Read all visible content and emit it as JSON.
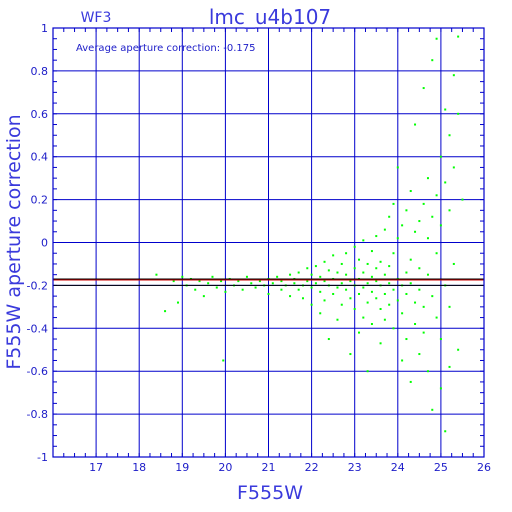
{
  "chart_data": {
    "type": "scatter",
    "title": "lmc_u4b107",
    "subtitle": "WF3",
    "annotation": "Average aperture correction: -0.175",
    "xlabel": "F555W",
    "ylabel": "F555W aperture correction",
    "xlim": [
      16,
      26
    ],
    "ylim": [
      -1,
      1
    ],
    "x_ticks": [
      "17",
      "18",
      "19",
      "20",
      "21",
      "22",
      "23",
      "24",
      "25",
      "26"
    ],
    "y_ticks": [
      "-1",
      "-0.8",
      "-0.6",
      "-0.4",
      "-0.2",
      "0",
      "0.2",
      "0.4",
      "0.6",
      "0.8",
      "1"
    ],
    "grid": true,
    "reference_lines": [
      {
        "label": "average",
        "y": -0.175,
        "color": "#cc0000"
      },
      {
        "label": "band-top",
        "y": -0.17,
        "color": "#000000"
      },
      {
        "label": "band-bottom",
        "y": -0.2,
        "color": "#000000"
      }
    ],
    "colors": {
      "points": "#00ff00",
      "frame": "#0000cc",
      "grid": "#0000cc",
      "text": "#3a3adc"
    },
    "series": [
      {
        "values": [
          [
            18.4,
            -0.15
          ],
          [
            18.6,
            -0.32
          ],
          [
            18.8,
            -0.18
          ],
          [
            18.9,
            -0.28
          ],
          [
            19.0,
            -0.16
          ],
          [
            19.1,
            -0.2
          ],
          [
            19.2,
            -0.17
          ],
          [
            19.3,
            -0.22
          ],
          [
            19.4,
            -0.18
          ],
          [
            19.5,
            -0.25
          ],
          [
            19.6,
            -0.19
          ],
          [
            19.7,
            -0.16
          ],
          [
            19.8,
            -0.21
          ],
          [
            19.9,
            -0.18
          ],
          [
            19.95,
            -0.55
          ],
          [
            20.0,
            -0.23
          ],
          [
            20.1,
            -0.17
          ],
          [
            20.2,
            -0.2
          ],
          [
            20.3,
            -0.18
          ],
          [
            20.4,
            -0.22
          ],
          [
            20.5,
            -0.16
          ],
          [
            20.6,
            -0.19
          ],
          [
            20.7,
            -0.21
          ],
          [
            20.8,
            -0.18
          ],
          [
            20.9,
            -0.2
          ],
          [
            21.0,
            -0.17
          ],
          [
            21.0,
            -0.24
          ],
          [
            21.1,
            -0.19
          ],
          [
            21.2,
            -0.16
          ],
          [
            21.3,
            -0.22
          ],
          [
            21.3,
            -0.18
          ],
          [
            21.4,
            -0.2
          ],
          [
            21.5,
            -0.15
          ],
          [
            21.5,
            -0.25
          ],
          [
            21.6,
            -0.19
          ],
          [
            21.6,
            -0.17
          ],
          [
            21.7,
            -0.22
          ],
          [
            21.7,
            -0.14
          ],
          [
            21.8,
            -0.2
          ],
          [
            21.8,
            -0.26
          ],
          [
            21.9,
            -0.18
          ],
          [
            21.9,
            -0.12
          ],
          [
            22.0,
            -0.21
          ],
          [
            22.0,
            -0.15
          ],
          [
            22.0,
            -0.29
          ],
          [
            22.1,
            -0.19
          ],
          [
            22.1,
            -0.11
          ],
          [
            22.2,
            -0.23
          ],
          [
            22.2,
            -0.16
          ],
          [
            22.2,
            -0.33
          ],
          [
            22.3,
            -0.18
          ],
          [
            22.3,
            -0.09
          ],
          [
            22.3,
            -0.27
          ],
          [
            22.4,
            -0.2
          ],
          [
            22.4,
            -0.13
          ],
          [
            22.4,
            -0.45
          ],
          [
            22.5,
            -0.17
          ],
          [
            22.5,
            -0.24
          ],
          [
            22.5,
            -0.06
          ],
          [
            22.6,
            -0.21
          ],
          [
            22.6,
            -0.14
          ],
          [
            22.6,
            -0.36
          ],
          [
            22.7,
            -0.19
          ],
          [
            22.7,
            -0.1
          ],
          [
            22.7,
            -0.29
          ],
          [
            22.8,
            -0.22
          ],
          [
            22.8,
            -0.15
          ],
          [
            22.8,
            -0.05
          ],
          [
            22.9,
            -0.18
          ],
          [
            22.9,
            -0.26
          ],
          [
            22.9,
            -0.52
          ],
          [
            23.0,
            -0.2
          ],
          [
            23.0,
            -0.12
          ],
          [
            23.0,
            -0.31
          ],
          [
            23.0,
            -0.02
          ],
          [
            23.1,
            -0.17
          ],
          [
            23.1,
            -0.24
          ],
          [
            23.1,
            -0.08
          ],
          [
            23.1,
            -0.42
          ],
          [
            23.2,
            -0.21
          ],
          [
            23.2,
            -0.14
          ],
          [
            23.2,
            -0.35
          ],
          [
            23.2,
            0.01
          ],
          [
            23.3,
            -0.19
          ],
          [
            23.3,
            -0.1
          ],
          [
            23.3,
            -0.28
          ],
          [
            23.3,
            -0.6
          ],
          [
            23.4,
            -0.23
          ],
          [
            23.4,
            -0.16
          ],
          [
            23.4,
            -0.04
          ],
          [
            23.4,
            -0.38
          ],
          [
            23.5,
            -0.18
          ],
          [
            23.5,
            -0.26
          ],
          [
            23.5,
            -0.12
          ],
          [
            23.5,
            0.03
          ],
          [
            23.6,
            -0.2
          ],
          [
            23.6,
            -0.31
          ],
          [
            23.6,
            -0.09
          ],
          [
            23.6,
            -0.47
          ],
          [
            23.7,
            -0.15
          ],
          [
            23.7,
            -0.24
          ],
          [
            23.7,
            0.06
          ],
          [
            23.7,
            -0.36
          ],
          [
            23.8,
            -0.19
          ],
          [
            23.8,
            -0.11
          ],
          [
            23.8,
            -0.29
          ],
          [
            23.8,
            0.12
          ],
          [
            23.9,
            -0.22
          ],
          [
            23.9,
            -0.05
          ],
          [
            23.9,
            -0.4
          ],
          [
            23.9,
            0.18
          ],
          [
            24.0,
            -0.17
          ],
          [
            24.0,
            -0.27
          ],
          [
            24.0,
            0.02
          ],
          [
            24.0,
            0.35
          ],
          [
            24.1,
            -0.2
          ],
          [
            24.1,
            -0.33
          ],
          [
            24.1,
            0.08
          ],
          [
            24.1,
            -0.55
          ],
          [
            24.2,
            -0.14
          ],
          [
            24.2,
            -0.24
          ],
          [
            24.2,
            0.15
          ],
          [
            24.2,
            -0.45
          ],
          [
            24.3,
            -0.19
          ],
          [
            24.3,
            -0.08
          ],
          [
            24.3,
            0.24
          ],
          [
            24.3,
            -0.65
          ],
          [
            24.4,
            -0.28
          ],
          [
            24.4,
            0.05
          ],
          [
            24.4,
            -0.38
          ],
          [
            24.4,
            0.55
          ],
          [
            24.5,
            -0.22
          ],
          [
            24.5,
            -0.12
          ],
          [
            24.5,
            0.1
          ],
          [
            24.5,
            -0.52
          ],
          [
            24.6,
            -0.3
          ],
          [
            24.6,
            0.18
          ],
          [
            24.6,
            -0.42
          ],
          [
            24.6,
            0.72
          ],
          [
            24.7,
            -0.15
          ],
          [
            24.7,
            0.02
          ],
          [
            24.7,
            -0.6
          ],
          [
            24.7,
            0.3
          ],
          [
            24.8,
            -0.25
          ],
          [
            24.8,
            0.12
          ],
          [
            24.8,
            -0.78
          ],
          [
            24.8,
            0.85
          ],
          [
            24.9,
            -0.35
          ],
          [
            24.9,
            0.22
          ],
          [
            24.9,
            -0.05
          ],
          [
            24.9,
            0.95
          ],
          [
            25.0,
            -0.45
          ],
          [
            25.0,
            0.08
          ],
          [
            25.0,
            0.4
          ],
          [
            25.0,
            -0.68
          ],
          [
            25.1,
            -0.2
          ],
          [
            25.1,
            0.28
          ],
          [
            25.1,
            -0.88
          ],
          [
            25.1,
            0.62
          ],
          [
            25.2,
            -0.3
          ],
          [
            25.2,
            0.15
          ],
          [
            25.2,
            0.5
          ],
          [
            25.2,
            -0.58
          ],
          [
            25.3,
            0.78
          ],
          [
            25.3,
            -0.1
          ],
          [
            25.3,
            0.35
          ],
          [
            25.4,
            0.96
          ],
          [
            25.4,
            -0.5
          ],
          [
            25.4,
            0.6
          ],
          [
            25.5,
            0.2
          ]
        ]
      }
    ]
  }
}
